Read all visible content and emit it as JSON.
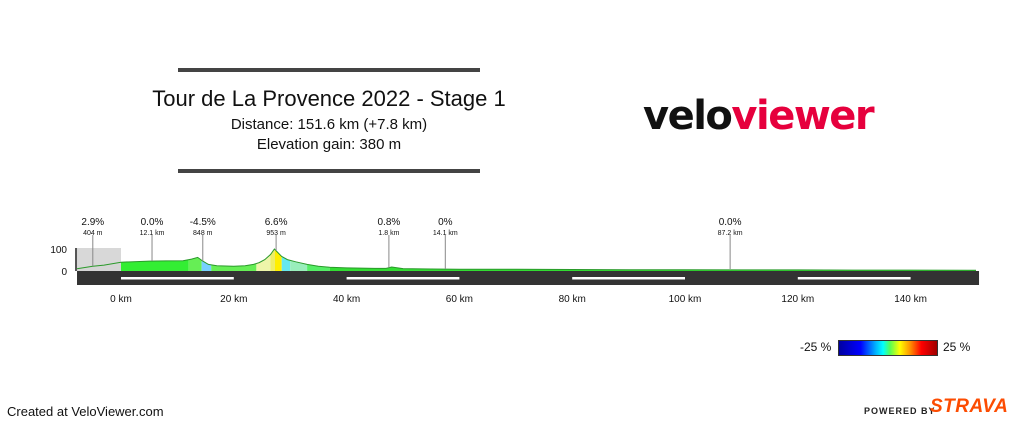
{
  "header": {
    "title": "Tour de La Provence 2022 - Stage 1",
    "distance": "Distance: 151.6 km (+7.8 km)",
    "elevation": "Elevation gain: 380 m"
  },
  "logo": {
    "part1": "velo",
    "part2": "viewer",
    "color_dark": "#111111",
    "color_brand": "#e6003d"
  },
  "chart_data": {
    "type": "area",
    "title": "Tour de La Provence 2022 - Stage 1",
    "x_unit": "km",
    "y_unit": "m",
    "xlim": [
      -7.8,
      151.6
    ],
    "ylim": [
      0,
      100
    ],
    "x_ticks": [
      0,
      20,
      40,
      60,
      80,
      100,
      120,
      140
    ],
    "x_tick_labels": [
      "0 km",
      "20 km",
      "40 km",
      "60 km",
      "80 km",
      "100 km",
      "120 km",
      "140 km"
    ],
    "y_ticks": [
      0,
      100
    ],
    "y_tick_labels": [
      "0",
      "100"
    ],
    "neutral_start_km": -7.8,
    "elevation_profile": {
      "x": [
        -7.8,
        -5,
        -3,
        0,
        5,
        8,
        11,
        12.5,
        13.6,
        14.5,
        15.5,
        17,
        20,
        22,
        23.5,
        24.5,
        25.5,
        26.5,
        27.2,
        27.8,
        28.5,
        29.5,
        31,
        33,
        35,
        37,
        40,
        45,
        47,
        48,
        50,
        55,
        60,
        70,
        80,
        90,
        100,
        110,
        120,
        130,
        140,
        150,
        151.6
      ],
      "y": [
        10,
        22,
        27,
        40,
        45,
        46,
        47,
        54,
        62,
        45,
        30,
        24,
        22,
        24,
        30,
        38,
        52,
        75,
        100,
        84,
        66,
        52,
        42,
        30,
        22,
        17,
        14,
        12,
        12,
        18,
        11,
        9,
        8,
        8,
        7,
        6,
        6,
        5,
        5,
        4,
        4,
        3,
        3
      ]
    },
    "gradient_colors": [
      {
        "from": -7.8,
        "to": 0,
        "color": "#d9d9d9"
      },
      {
        "from": 0,
        "to": 12,
        "color": "#33ee33"
      },
      {
        "from": 12,
        "to": 14.3,
        "color": "#66ee55"
      },
      {
        "from": 14.3,
        "to": 16,
        "color": "#77d0ff"
      },
      {
        "from": 16,
        "to": 24,
        "color": "#66ee55"
      },
      {
        "from": 24,
        "to": 26.5,
        "color": "#eef5aa"
      },
      {
        "from": 26.5,
        "to": 27.3,
        "color": "#eeee66"
      },
      {
        "from": 27.3,
        "to": 28.5,
        "color": "#ffee00"
      },
      {
        "from": 28.5,
        "to": 30,
        "color": "#66e8ee"
      },
      {
        "from": 30,
        "to": 33,
        "color": "#99eebb"
      },
      {
        "from": 33,
        "to": 37,
        "color": "#55ee66"
      },
      {
        "from": 37,
        "to": 151.6,
        "color": "#33dd33"
      }
    ],
    "annotations": [
      {
        "x": -5,
        "grade": "2.9%",
        "length": "404 m"
      },
      {
        "x": 5.5,
        "grade": "0.0%",
        "length": "12.1 km"
      },
      {
        "x": 14.5,
        "grade": "-4.5%",
        "length": "848 m"
      },
      {
        "x": 27.5,
        "grade": "6.6%",
        "length": "953 m"
      },
      {
        "x": 47.5,
        "grade": "0.8%",
        "length": "1.8 km"
      },
      {
        "x": 57.5,
        "grade": "0%",
        "length": "14.1 km"
      },
      {
        "x": 108,
        "grade": "0.0%",
        "length": "87.2 km"
      }
    ],
    "distance_markers": [
      [
        0,
        20
      ],
      [
        40,
        60
      ],
      [
        80,
        100
      ],
      [
        120,
        140
      ]
    ],
    "colorbar": {
      "min_label": "-25 %",
      "max_label": "25 %"
    }
  },
  "footer": {
    "created": "Created at VeloViewer.com",
    "powered": "POWERED BY",
    "strava": "STRAVA"
  }
}
